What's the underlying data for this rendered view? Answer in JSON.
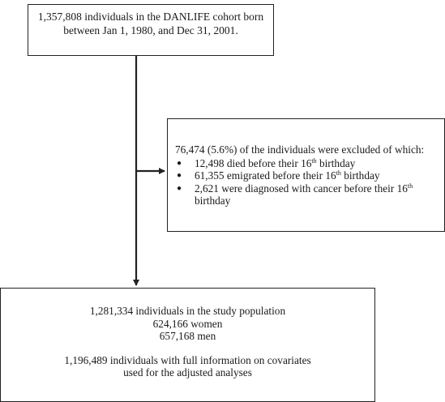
{
  "top_box": {
    "line1": "1,357,808 individuals in the DANLIFE cohort born",
    "line2": "between Jan 1, 1980, and Dec 31, 2001."
  },
  "exclusion_box": {
    "intro": "76,474 (5.6%) of the individuals were excluded of which:",
    "bullet_glyph": "●",
    "items": [
      {
        "text": "12,498 died before their 16",
        "sup": "th",
        "tail": " birthday"
      },
      {
        "text": "61,355 emigrated before their 16",
        "sup": "th",
        "tail": " birthday"
      },
      {
        "text": "2,621 were diagnosed with cancer before their 16",
        "sup": "th",
        "tail": "",
        "continuation": "birthday"
      }
    ]
  },
  "bottom_box": {
    "line1": "1,281,334 individuals in the study population",
    "line2": "624,166 women",
    "line3": "657,168 men",
    "line4": "1,196,489 individuals with full information on covariates",
    "line5": "used for the adjusted analyses"
  }
}
